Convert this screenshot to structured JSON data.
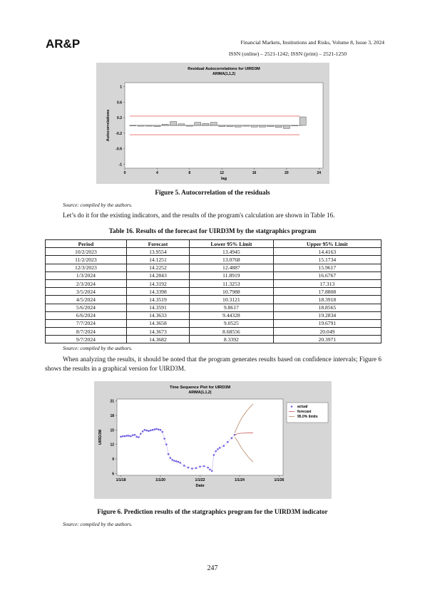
{
  "header": {
    "logo": "AR&P",
    "journal": "Financial Markets, Institutions and Risks, Volume 8, Issue 3, 2024",
    "issn": "ISSN (online) – 2521-1242; ISSN (print) – 2521-1250"
  },
  "figure5": {
    "caption": "Figure 5. Autocorrelation of the residuals",
    "source": "Source: compiled by the authors.",
    "chart_data": {
      "type": "bar",
      "title": "Residual Autocorrelations for UIRD3M",
      "subtitle": "ARIMA(1,1,2)",
      "x_label": "lag",
      "y_label": "Autocorrelations",
      "x": [
        1,
        2,
        3,
        4,
        5,
        6,
        7,
        8,
        9,
        10,
        11,
        12,
        13,
        14,
        15,
        16,
        17,
        18,
        19,
        20,
        21,
        22
      ],
      "values": [
        -0.01,
        -0.02,
        -0.02,
        -0.03,
        0.03,
        0.1,
        0.04,
        -0.02,
        0.08,
        0.05,
        0.08,
        -0.03,
        -0.03,
        -0.04,
        -0.02,
        -0.04,
        -0.04,
        -0.03,
        -0.05,
        -0.08,
        -0.01,
        0.22
      ],
      "color": "#c8c8c8",
      "limits": [
        0.24,
        -0.24
      ],
      "limit_color": "#e03030",
      "xlim": [
        0,
        24.5
      ],
      "xticks": [
        0,
        4,
        8,
        12,
        16,
        20,
        24
      ],
      "ylim": [
        -1.1,
        1.1
      ],
      "yticks": [
        -1,
        -0.6,
        -0.2,
        0.2,
        0.6,
        1
      ]
    }
  },
  "text1": "Let’s do it for the existing indicators, and the results of the program's calculation are shown in Table 16.",
  "table": {
    "title": "Table 16. Results of the forecast for UIRD3M by the statgraphics program",
    "columns": [
      "Period",
      "Forecast",
      "Lower 95% Limit",
      "Upper 95% Limit"
    ],
    "rows": [
      [
        "10/2/2023",
        13.9554,
        13.4945,
        14.4163
      ],
      [
        "11/2/2023",
        14.1251,
        13.0768,
        15.1734
      ],
      [
        "12/3/2023",
        14.2252,
        12.4887,
        15.9617
      ],
      [
        "1/3/2024",
        14.2843,
        11.8919,
        16.6767
      ],
      [
        "2/3/2024",
        14.3192,
        11.3253,
        17.313
      ],
      [
        "3/5/2024",
        14.3398,
        10.7988,
        17.8808
      ],
      [
        "4/5/2024",
        14.3519,
        10.3121,
        18.3918
      ],
      [
        "5/6/2024",
        14.3591,
        9.8617,
        18.8565
      ],
      [
        "6/6/2024",
        14.3633,
        9.44328,
        19.2834
      ],
      [
        "7/7/2024",
        14.3658,
        9.0525,
        19.6791
      ],
      [
        "8/7/2024",
        14.3673,
        8.68556,
        20.049
      ],
      [
        "9/7/2024",
        14.3682,
        8.3392,
        20.3971
      ]
    ],
    "source": "Source: compiled by the authors."
  },
  "text2": "When analyzing the results, it should be noted that the program generates results based on confidence intervals; Figure 6 shows the results in a graphical version for UIRD3M.",
  "figure6": {
    "caption": "Figure 6. Prediction results of the statgraphics program for the UIRD3M indicator",
    "source": "Source: compiled by the authors.",
    "chart_data": {
      "type": "line",
      "title": "Time Sequence Plot for UIRD3M",
      "subtitle": "ARIMA(1,1,2)",
      "x_label": "Date",
      "y_label": "UIRD3M",
      "series": [
        {
          "name": "actual",
          "color": "#7060e0",
          "x": [
            2018.0,
            2018.1,
            2018.2,
            2018.3,
            2018.4,
            2018.5,
            2018.6,
            2018.7,
            2018.8,
            2018.9,
            2019.0,
            2019.1,
            2019.2,
            2019.3,
            2019.4,
            2019.5,
            2019.6,
            2019.7,
            2019.8,
            2019.9,
            2020.0,
            2020.1,
            2020.2,
            2020.3,
            2020.4,
            2020.5,
            2020.6,
            2020.7,
            2020.8,
            2020.9,
            2021.0,
            2021.2,
            2021.4,
            2021.6,
            2021.8,
            2022.0,
            2022.2,
            2022.4,
            2022.5,
            2022.6,
            2022.7,
            2022.8,
            2022.9,
            2023.0,
            2023.2,
            2023.4,
            2023.6,
            2023.75
          ],
          "values": [
            13.6,
            13.7,
            13.7,
            13.8,
            13.8,
            13.7,
            13.9,
            14.0,
            13.6,
            13.5,
            14.2,
            14.7,
            15.0,
            14.9,
            14.8,
            14.9,
            15.0,
            15.1,
            15.2,
            15.1,
            15.0,
            14.6,
            13.2,
            12.0,
            10.0,
            9.2,
            8.8,
            8.6,
            8.5,
            8.4,
            8.2,
            7.6,
            7.2,
            7.0,
            7.1,
            7.4,
            7.5,
            7.2,
            6.8,
            6.5,
            9.8,
            10.6,
            11.0,
            11.3,
            11.7,
            12.5,
            13.3,
            14.0
          ]
        },
        {
          "name": "forecast",
          "color": "#c04040"
        },
        {
          "name": "95.0% limits",
          "color": "#b07850"
        }
      ],
      "xlim": [
        2017.8,
        2026.2
      ],
      "xticks": [
        {
          "value": 2018,
          "label": "1/1/18"
        },
        {
          "value": 2020,
          "label": "1/1/20"
        },
        {
          "value": 2022,
          "label": "1/1/22"
        },
        {
          "value": 2024,
          "label": "1/1/24"
        },
        {
          "value": 2026,
          "label": "1/1/26"
        }
      ],
      "ylim": [
        5.6,
        21.4
      ],
      "yticks": [
        6,
        9,
        12,
        15,
        18,
        21
      ]
    }
  },
  "page_number": "247"
}
